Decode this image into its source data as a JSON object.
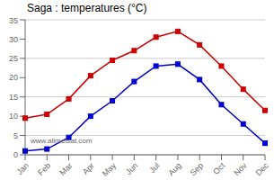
{
  "chart_data": {
    "type": "line",
    "title": "Saga : temperatures (°C)",
    "categories": [
      "Jan",
      "Feb",
      "Mar",
      "Apr",
      "May",
      "Jun",
      "Jul",
      "Aug",
      "Sep",
      "Oct",
      "Nov",
      "Dec"
    ],
    "series": [
      {
        "color": "#cc0000",
        "marker": "square",
        "values": [
          9.5,
          10.5,
          14.5,
          20.5,
          24.5,
          27.0,
          30.5,
          32.0,
          28.5,
          23.0,
          17.0,
          11.5
        ]
      },
      {
        "color": "#0000cc",
        "marker": "square",
        "values": [
          1.0,
          1.5,
          4.5,
          10.0,
          14.0,
          19.0,
          23.0,
          23.5,
          19.5,
          13.0,
          8.0,
          3.0
        ]
      }
    ],
    "ylim": [
      0,
      35
    ],
    "yticks": [
      0,
      5,
      10,
      15,
      20,
      25,
      30,
      35
    ],
    "grid": true,
    "annotations": [
      "www.allmetsat.com"
    ]
  }
}
